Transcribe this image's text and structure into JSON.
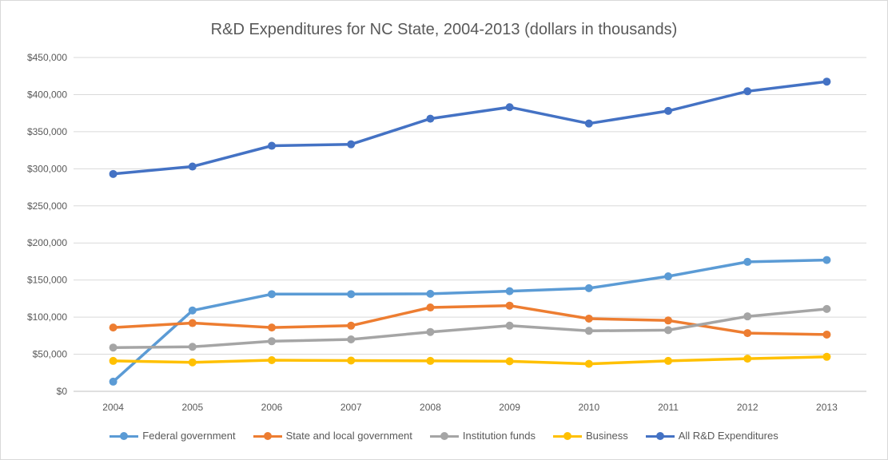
{
  "chart_data": {
    "type": "line",
    "title": "R&D Expenditures for NC State, 2004-2013 (dollars in thousands)",
    "categories": [
      "2004",
      "2005",
      "2006",
      "2007",
      "2008",
      "2009",
      "2010",
      "2011",
      "2012",
      "2013"
    ],
    "y_ticks": [
      "$0",
      "$50,000",
      "$100,000",
      "$150,000",
      "$200,000",
      "$250,000",
      "$300,000",
      "$350,000",
      "$400,000",
      "$450,000"
    ],
    "ylim": [
      0,
      450000
    ],
    "grid": true,
    "legend_position": "bottom",
    "series": [
      {
        "name": "Federal government",
        "color": "#5b9bd5",
        "values": [
          13000,
          109000,
          131000,
          131000,
          131500,
          135000,
          139000,
          155000,
          174500,
          177000
        ]
      },
      {
        "name": "State and local government",
        "color": "#ed7d31",
        "values": [
          86000,
          92000,
          86000,
          88500,
          113000,
          115500,
          98000,
          95500,
          78500,
          76500
        ]
      },
      {
        "name": "Institution funds",
        "color": "#a5a5a5",
        "values": [
          59000,
          60000,
          67500,
          70000,
          80000,
          88500,
          81500,
          82500,
          101000,
          111000
        ]
      },
      {
        "name": "Business",
        "color": "#ffc000",
        "values": [
          41000,
          39000,
          42000,
          41500,
          41000,
          40500,
          37000,
          41000,
          44000,
          46500
        ]
      },
      {
        "name": "All R&D Expenditures",
        "color": "#4472c4",
        "values": [
          293000,
          303000,
          331000,
          333000,
          367500,
          383000,
          361000,
          378000,
          404500,
          417500
        ]
      }
    ]
  }
}
